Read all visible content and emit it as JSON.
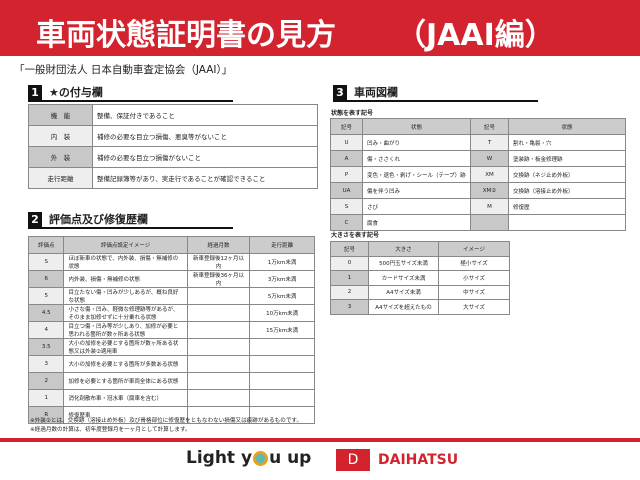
{
  "header": {
    "title": "車両状態証明書の見方",
    "subtitle": "（JAAI編）"
  },
  "organization": "「一般財団法人 日本自動車査定協会（JAAI）」",
  "section1": {
    "num": "1",
    "title": "★の付与欄",
    "rows": [
      {
        "label": "機　能",
        "text": "整備、保証付きであること"
      },
      {
        "label": "内　装",
        "text": "補修の必要な目立つ損傷、悪臭等がないこと"
      },
      {
        "label": "外　装",
        "text": "補修の必要な目立つ損傷がないこと"
      },
      {
        "label": "走行距離",
        "text": "整備記録簿等があり、実走行であることが確認できること"
      }
    ]
  },
  "section2": {
    "num": "2",
    "title": "評価点及び修復歴欄",
    "headers": [
      "評価点",
      "評価点設定イメージ",
      "経過月数",
      "走行距離"
    ],
    "rows": [
      [
        "S",
        "ほぼ新車の状態で、内外装、損傷・無補修の状態",
        "新車登録後12ヶ月以内",
        "1万km未満"
      ],
      [
        "6",
        "内外装、損傷・無補修の状態",
        "新車登録後36ヶ月以内",
        "3万km未満"
      ],
      [
        "5",
        "目立たない傷・凹みが少しあるが、概ね良好な状態",
        "",
        "5万km未満"
      ],
      [
        "4.5",
        "小さな傷・凹み、軽微な修理跡等があるが、そのまま加修せずに十分乗れる状態",
        "",
        "10万km未満"
      ],
      [
        "4",
        "目立つ傷・凹み等が少しあり、加修が必要と思われる箇所が数ヶ所ある状態",
        "",
        "15万km未満"
      ],
      [
        "3.5",
        "大小の加修を必要とする箇所が数ヶ所ある状態又は外装②適用車",
        "",
        ""
      ],
      [
        "3",
        "大小の加修を必要とする箇所が多数ある状態",
        "",
        ""
      ],
      [
        "2",
        "加修を必要とする箇所が車両全体にある状態",
        "",
        ""
      ],
      [
        "1",
        "消化剤散布車・冠水車（腐車を含む）",
        "",
        ""
      ],
      [
        "R",
        "修復歴車",
        "",
        ""
      ]
    ]
  },
  "notes": [
    "※外装②とは、交換跡（溶接止め外板）及び骨格部位に修復歴をともなわない損傷又は痕跡があるものです。",
    "※経過月数の計算は、初年度登録月を一ヶ月として計算します。"
  ],
  "section3": {
    "num": "3",
    "title": "車両図欄",
    "state_label": "状態を表す記号",
    "state_headers": [
      "記号",
      "状態",
      "記号",
      "状態"
    ],
    "state_rows": [
      [
        "U",
        "凹み・曲がり",
        "T",
        "割れ・亀裂・穴"
      ],
      [
        "A",
        "傷・ささくれ",
        "W",
        "塗装跡・板金修理跡"
      ],
      [
        "P",
        "変色・退色・剥げ・シール（テープ）跡",
        "XM",
        "交換跡（ネジ止め外板）"
      ],
      [
        "UA",
        "傷を伴う凹み",
        "XM②",
        "交換跡（溶接止め外板）"
      ],
      [
        "S",
        "さび",
        "M",
        "修復歴"
      ],
      [
        "C",
        "腐食",
        "",
        ""
      ]
    ],
    "size_label": "大きさを表す記号",
    "size_headers": [
      "記号",
      "大きさ",
      "イメージ"
    ],
    "size_rows": [
      [
        "0",
        "500円玉サイズ未満",
        "極小サイズ"
      ],
      [
        "1",
        "カードサイズ未満",
        "小サイズ"
      ],
      [
        "2",
        "A4サイズ未満",
        "中サイズ"
      ],
      [
        "3",
        "A4サイズを超えたもの",
        "大サイズ"
      ]
    ]
  },
  "footer": {
    "slogan_pre": "Light y",
    "slogan_post": "u up",
    "brand": "DAIHATSU"
  },
  "colors": {
    "brand_red": "#d2232f"
  }
}
